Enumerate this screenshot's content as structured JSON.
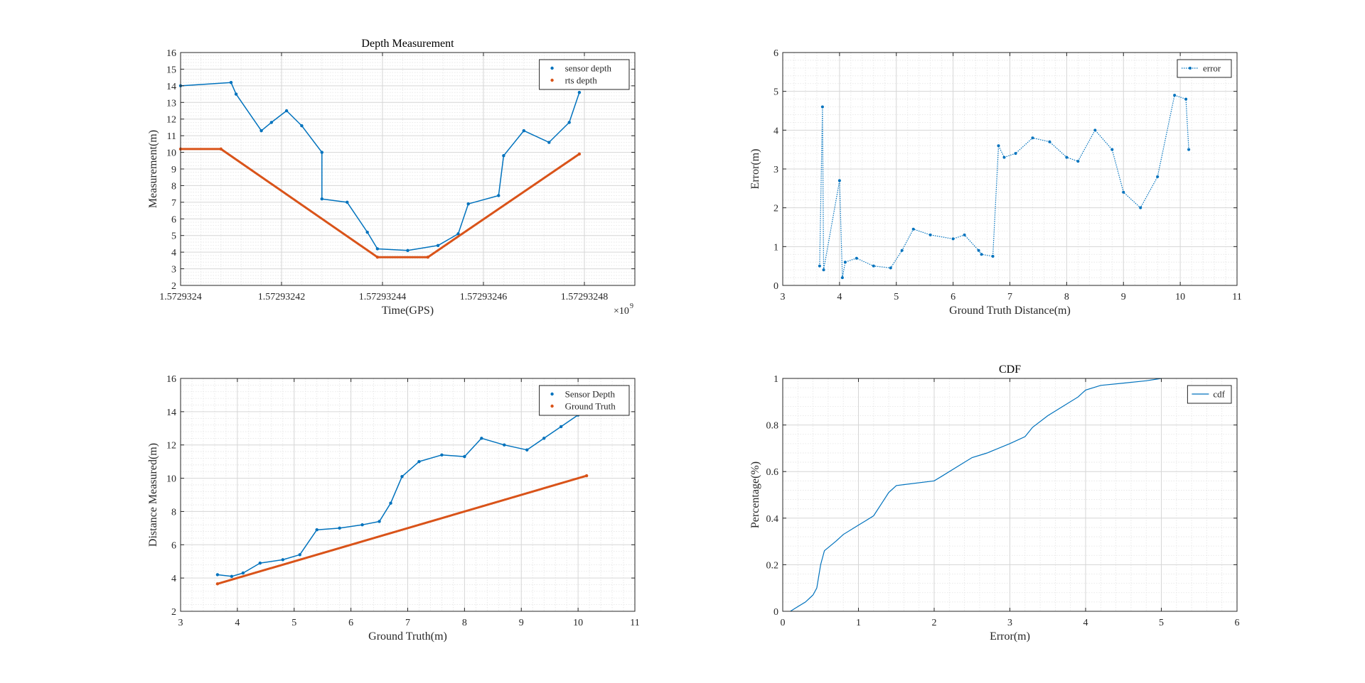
{
  "chart_data": [
    {
      "type": "scatter",
      "title": "Depth Measurement",
      "xlabel": "Time(GPS)",
      "ylabel": "Measurement(m)",
      "exponent_label": "×10",
      "exponent_power": "9",
      "xlim": [
        1.5729324,
        1.57293249
      ],
      "ylim": [
        2,
        16
      ],
      "x_ticks": [
        1.5729324,
        1.57293242,
        1.57293244,
        1.57293246,
        1.57293248
      ],
      "x_tick_labels": [
        "1.5729324",
        "1.57293242",
        "1.57293244",
        "1.57293246",
        "1.57293248"
      ],
      "y_ticks": [
        2,
        3,
        4,
        5,
        6,
        7,
        8,
        9,
        10,
        11,
        12,
        13,
        14,
        15,
        16
      ],
      "grid": true,
      "legend_position": "top-right",
      "series": [
        {
          "name": "sensor depth",
          "color": "#0072BD",
          "x": [
            1.5729324,
            1.57293241,
            1.572932411,
            1.572932416,
            1.572932418,
            1.572932421,
            1.572932424,
            1.572932428,
            1.572932428,
            1.572932433,
            1.572932437,
            1.572932439,
            1.572932445,
            1.572932451,
            1.572932455,
            1.572932457,
            1.572932463,
            1.572932464,
            1.572932468,
            1.572932473,
            1.572932477,
            1.572932479
          ],
          "y": [
            14.0,
            14.2,
            13.5,
            11.3,
            11.8,
            12.5,
            11.6,
            10.0,
            7.2,
            7.0,
            5.2,
            4.2,
            4.1,
            4.4,
            5.1,
            6.9,
            7.4,
            9.8,
            11.3,
            10.6,
            11.8,
            13.6
          ]
        },
        {
          "name": "rts depth",
          "color": "#D95319",
          "x": [
            1.5729324,
            1.572932408,
            1.572932439,
            1.572932449,
            1.572932479
          ],
          "y": [
            10.2,
            10.2,
            3.7,
            3.7,
            9.9
          ]
        }
      ]
    },
    {
      "type": "line",
      "title": "",
      "xlabel": "Ground Truth Distance(m)",
      "ylabel": "Error(m)",
      "xlim": [
        3,
        11
      ],
      "ylim": [
        0,
        6
      ],
      "x_ticks": [
        3,
        4,
        5,
        6,
        7,
        8,
        9,
        10,
        11
      ],
      "y_ticks": [
        0,
        1,
        2,
        3,
        4,
        5,
        6
      ],
      "grid": true,
      "legend_position": "top-right",
      "series": [
        {
          "name": "error",
          "color": "#0072BD",
          "x": [
            3.65,
            3.7,
            3.72,
            4.0,
            4.05,
            4.1,
            4.3,
            4.6,
            4.9,
            5.1,
            5.3,
            5.6,
            6.0,
            6.2,
            6.45,
            6.5,
            6.7,
            6.8,
            6.9,
            7.1,
            7.4,
            7.7,
            8.0,
            8.2,
            8.5,
            8.8,
            9.0,
            9.3,
            9.6,
            9.9,
            10.1,
            10.15
          ],
          "y": [
            0.5,
            4.6,
            0.4,
            2.7,
            0.2,
            0.6,
            0.7,
            0.5,
            0.45,
            0.9,
            1.45,
            1.3,
            1.2,
            1.3,
            0.9,
            0.8,
            0.75,
            3.6,
            3.3,
            3.4,
            3.8,
            3.7,
            3.3,
            3.2,
            4.0,
            3.5,
            2.4,
            2.0,
            2.8,
            4.9,
            4.8,
            3.5
          ]
        }
      ]
    },
    {
      "type": "scatter",
      "title": "",
      "xlabel": "Ground Truth(m)",
      "ylabel": "Distance Measured(m)",
      "xlim": [
        3,
        11
      ],
      "ylim": [
        2,
        16
      ],
      "x_ticks": [
        3,
        4,
        5,
        6,
        7,
        8,
        9,
        10,
        11
      ],
      "y_ticks": [
        2,
        4,
        6,
        8,
        10,
        12,
        14,
        16
      ],
      "grid": true,
      "legend_position": "top-right",
      "series": [
        {
          "name": "Sensor Depth",
          "color": "#0072BD",
          "x": [
            3.65,
            3.9,
            4.1,
            4.4,
            4.8,
            5.1,
            5.4,
            5.8,
            6.2,
            6.5,
            6.7,
            6.9,
            7.2,
            7.6,
            8.0,
            8.3,
            8.7,
            9.1,
            9.4,
            9.7,
            10.0,
            10.15
          ],
          "y": [
            4.2,
            4.1,
            4.3,
            4.9,
            5.1,
            5.4,
            6.9,
            7.0,
            7.2,
            7.4,
            8.5,
            10.1,
            11.0,
            11.4,
            11.3,
            12.4,
            12.0,
            11.7,
            12.4,
            13.1,
            13.8,
            14.0
          ]
        },
        {
          "name": "Ground Truth",
          "color": "#D95319",
          "x": [
            3.65,
            10.15
          ],
          "y": [
            3.65,
            10.15
          ]
        }
      ]
    },
    {
      "type": "line",
      "title": "CDF",
      "xlabel": "Error(m)",
      "ylabel": "Percentage(%)",
      "xlim": [
        0,
        6
      ],
      "ylim": [
        0,
        1
      ],
      "x_ticks": [
        0,
        1,
        2,
        3,
        4,
        5,
        6
      ],
      "y_ticks": [
        0,
        0.2,
        0.4,
        0.6,
        0.8,
        1
      ],
      "grid": true,
      "legend_position": "top-right",
      "series": [
        {
          "name": "cdf",
          "color": "#0072BD",
          "x": [
            0.1,
            0.2,
            0.3,
            0.4,
            0.45,
            0.5,
            0.55,
            0.7,
            0.8,
            1.0,
            1.1,
            1.2,
            1.3,
            1.4,
            1.5,
            2.0,
            2.1,
            2.3,
            2.5,
            2.7,
            3.0,
            3.2,
            3.3,
            3.5,
            3.7,
            3.9,
            4.0,
            4.2,
            4.5,
            4.8,
            5.0
          ],
          "y": [
            0.0,
            0.02,
            0.04,
            0.07,
            0.1,
            0.2,
            0.26,
            0.3,
            0.33,
            0.37,
            0.39,
            0.41,
            0.46,
            0.51,
            0.54,
            0.56,
            0.58,
            0.62,
            0.66,
            0.68,
            0.72,
            0.75,
            0.79,
            0.84,
            0.88,
            0.92,
            0.95,
            0.97,
            0.98,
            0.99,
            1.0
          ]
        }
      ]
    }
  ]
}
